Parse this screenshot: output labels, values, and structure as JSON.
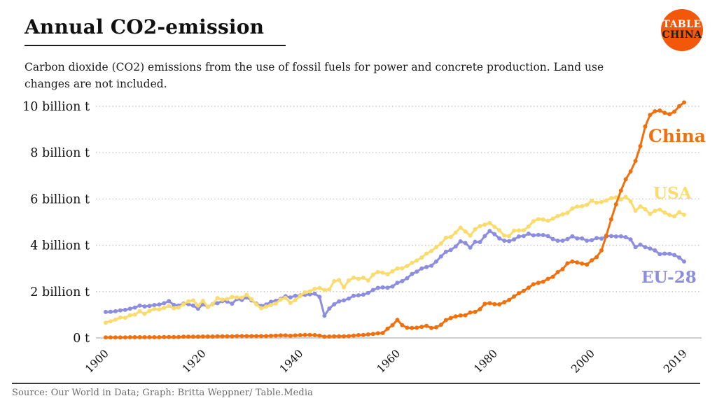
{
  "header": {
    "title": "Annual CO2-emission",
    "subtitle": "Carbon dioxide (CO2) emissions from the use of fossil fuels for power and concrete production. Land use changes are not included."
  },
  "logo": {
    "line1": "TABLE",
    "line2": "CHINA",
    "bg_color": "#F2570A"
  },
  "footer": {
    "source": "Source: Our World in Data; Graph: Britta Weppner/ Table.Media"
  },
  "chart_data": {
    "type": "line",
    "title": "Annual CO2-emission",
    "xlabel": "",
    "ylabel": "billion t",
    "xlim": [
      1900,
      2019
    ],
    "ylim": [
      0,
      10.5
    ],
    "grid": "horizontal-dotted",
    "legend_position": "right-end-of-lines",
    "x_ticks": [
      1900,
      1920,
      1940,
      1960,
      1980,
      2000,
      2019
    ],
    "x_tick_labels": [
      "1900",
      "1920",
      "1940",
      "1960",
      "1980",
      "2000",
      "2019"
    ],
    "y_ticks": [
      0,
      2,
      4,
      6,
      8,
      10
    ],
    "y_tick_labels": [
      "0 t",
      "2 billion t",
      "4 billion t",
      "6 billion t",
      "8 billion t",
      "10 billion t"
    ],
    "x": [
      1900,
      1901,
      1902,
      1903,
      1904,
      1905,
      1906,
      1907,
      1908,
      1909,
      1910,
      1911,
      1912,
      1913,
      1914,
      1915,
      1916,
      1917,
      1918,
      1919,
      1920,
      1921,
      1922,
      1923,
      1924,
      1925,
      1926,
      1927,
      1928,
      1929,
      1930,
      1931,
      1932,
      1933,
      1934,
      1935,
      1936,
      1937,
      1938,
      1939,
      1940,
      1941,
      1942,
      1943,
      1944,
      1945,
      1946,
      1947,
      1948,
      1949,
      1950,
      1951,
      1952,
      1953,
      1954,
      1955,
      1956,
      1957,
      1958,
      1959,
      1960,
      1961,
      1962,
      1963,
      1964,
      1965,
      1966,
      1967,
      1968,
      1969,
      1970,
      1971,
      1972,
      1973,
      1974,
      1975,
      1976,
      1977,
      1978,
      1979,
      1980,
      1981,
      1982,
      1983,
      1984,
      1985,
      1986,
      1987,
      1988,
      1989,
      1990,
      1991,
      1992,
      1993,
      1994,
      1995,
      1996,
      1997,
      1998,
      1999,
      2000,
      2001,
      2002,
      2003,
      2004,
      2005,
      2006,
      2007,
      2008,
      2009,
      2010,
      2011,
      2012,
      2013,
      2014,
      2015,
      2016,
      2017,
      2018,
      2019
    ],
    "unit": "billion tonnes CO2",
    "series": [
      {
        "name": "China",
        "color": "#F1700E",
        "values": [
          0.02,
          0.02,
          0.02,
          0.02,
          0.02,
          0.03,
          0.03,
          0.03,
          0.03,
          0.03,
          0.03,
          0.03,
          0.04,
          0.04,
          0.04,
          0.04,
          0.05,
          0.05,
          0.05,
          0.05,
          0.06,
          0.06,
          0.06,
          0.07,
          0.07,
          0.07,
          0.07,
          0.08,
          0.08,
          0.08,
          0.08,
          0.08,
          0.08,
          0.08,
          0.09,
          0.1,
          0.11,
          0.11,
          0.09,
          0.11,
          0.12,
          0.13,
          0.13,
          0.12,
          0.1,
          0.05,
          0.06,
          0.07,
          0.07,
          0.07,
          0.08,
          0.1,
          0.12,
          0.13,
          0.15,
          0.17,
          0.2,
          0.21,
          0.4,
          0.55,
          0.78,
          0.55,
          0.44,
          0.43,
          0.44,
          0.48,
          0.52,
          0.43,
          0.46,
          0.57,
          0.77,
          0.86,
          0.93,
          0.97,
          0.98,
          1.1,
          1.12,
          1.24,
          1.47,
          1.5,
          1.46,
          1.45,
          1.54,
          1.64,
          1.79,
          1.93,
          2.03,
          2.17,
          2.32,
          2.38,
          2.43,
          2.55,
          2.64,
          2.84,
          2.97,
          3.22,
          3.3,
          3.26,
          3.21,
          3.17,
          3.35,
          3.49,
          3.78,
          4.42,
          5.12,
          5.77,
          6.36,
          6.85,
          7.19,
          7.64,
          8.28,
          9.13,
          9.63,
          9.79,
          9.82,
          9.72,
          9.66,
          9.77,
          10.01,
          10.17
        ]
      },
      {
        "name": "USA",
        "color": "#FADB6C",
        "values": [
          0.66,
          0.72,
          0.79,
          0.88,
          0.87,
          0.98,
          1.01,
          1.15,
          1.04,
          1.17,
          1.25,
          1.23,
          1.3,
          1.38,
          1.28,
          1.31,
          1.45,
          1.58,
          1.62,
          1.4,
          1.6,
          1.34,
          1.45,
          1.72,
          1.65,
          1.68,
          1.77,
          1.75,
          1.74,
          1.86,
          1.67,
          1.45,
          1.28,
          1.35,
          1.42,
          1.49,
          1.66,
          1.73,
          1.51,
          1.63,
          1.81,
          1.97,
          2.01,
          2.12,
          2.15,
          2.07,
          2.1,
          2.45,
          2.5,
          2.18,
          2.48,
          2.6,
          2.55,
          2.6,
          2.48,
          2.73,
          2.85,
          2.82,
          2.75,
          2.88,
          3.0,
          3.01,
          3.11,
          3.24,
          3.34,
          3.47,
          3.64,
          3.75,
          3.92,
          4.08,
          4.33,
          4.36,
          4.55,
          4.76,
          4.6,
          4.42,
          4.69,
          4.83,
          4.89,
          4.96,
          4.8,
          4.65,
          4.42,
          4.4,
          4.63,
          4.64,
          4.65,
          4.81,
          5.04,
          5.13,
          5.11,
          5.06,
          5.15,
          5.26,
          5.34,
          5.4,
          5.59,
          5.67,
          5.69,
          5.75,
          5.93,
          5.84,
          5.87,
          5.94,
          6.04,
          6.07,
          5.98,
          6.09,
          5.9,
          5.49,
          5.68,
          5.56,
          5.35,
          5.49,
          5.54,
          5.41,
          5.31,
          5.25,
          5.43,
          5.32
        ]
      },
      {
        "name": "EU-28",
        "color": "#8C8CE0",
        "values": [
          1.12,
          1.13,
          1.15,
          1.19,
          1.21,
          1.26,
          1.31,
          1.4,
          1.36,
          1.38,
          1.42,
          1.44,
          1.5,
          1.59,
          1.43,
          1.4,
          1.48,
          1.46,
          1.4,
          1.26,
          1.45,
          1.34,
          1.46,
          1.5,
          1.59,
          1.57,
          1.48,
          1.68,
          1.64,
          1.75,
          1.62,
          1.48,
          1.38,
          1.44,
          1.56,
          1.6,
          1.69,
          1.8,
          1.75,
          1.82,
          1.83,
          1.86,
          1.88,
          1.91,
          1.77,
          0.96,
          1.27,
          1.45,
          1.58,
          1.62,
          1.7,
          1.82,
          1.84,
          1.87,
          1.94,
          2.07,
          2.16,
          2.18,
          2.17,
          2.22,
          2.38,
          2.45,
          2.58,
          2.76,
          2.86,
          3.0,
          3.06,
          3.12,
          3.3,
          3.52,
          3.72,
          3.8,
          3.95,
          4.17,
          4.1,
          3.9,
          4.15,
          4.14,
          4.4,
          4.62,
          4.48,
          4.3,
          4.2,
          4.18,
          4.25,
          4.38,
          4.4,
          4.5,
          4.43,
          4.45,
          4.44,
          4.4,
          4.27,
          4.2,
          4.2,
          4.27,
          4.39,
          4.3,
          4.3,
          4.2,
          4.22,
          4.31,
          4.29,
          4.39,
          4.4,
          4.38,
          4.39,
          4.35,
          4.25,
          3.92,
          4.03,
          3.92,
          3.86,
          3.78,
          3.62,
          3.64,
          3.63,
          3.58,
          3.47,
          3.3
        ]
      }
    ]
  }
}
